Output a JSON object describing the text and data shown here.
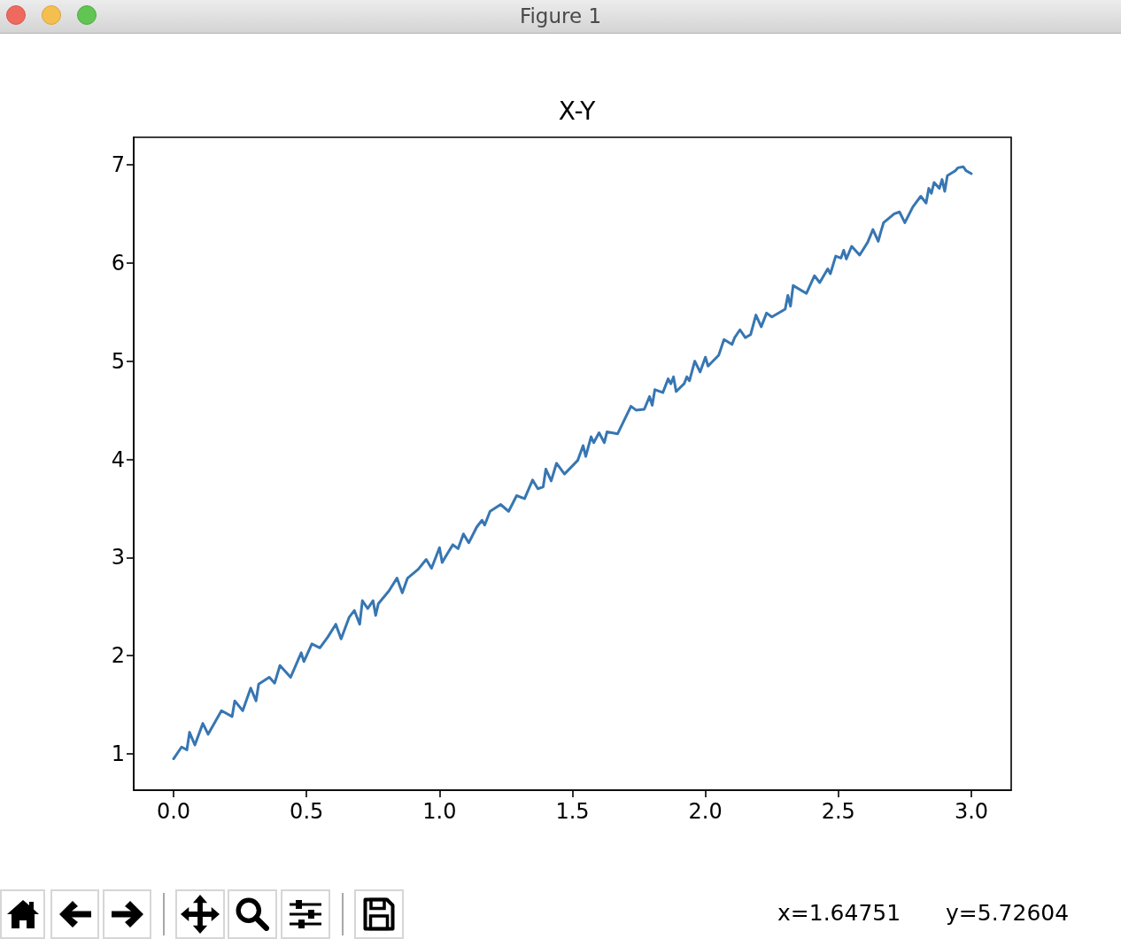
{
  "chart_data": {
    "type": "line",
    "title": "X-Y",
    "x": [
      0,
      0.03,
      0.05,
      0.06,
      0.08,
      0.11,
      0.13,
      0.18,
      0.22,
      0.23,
      0.26,
      0.29,
      0.31,
      0.32,
      0.36,
      0.38,
      0.4,
      0.44,
      0.48,
      0.49,
      0.52,
      0.55,
      0.58,
      0.61,
      0.63,
      0.66,
      0.68,
      0.7,
      0.71,
      0.73,
      0.75,
      0.76,
      0.77,
      0.81,
      0.84,
      0.86,
      0.88,
      0.92,
      0.95,
      0.97,
      1.0,
      1.01,
      1.05,
      1.07,
      1.09,
      1.11,
      1.14,
      1.16,
      1.17,
      1.19,
      1.23,
      1.26,
      1.29,
      1.32,
      1.35,
      1.37,
      1.39,
      1.4,
      1.42,
      1.44,
      1.47,
      1.52,
      1.54,
      1.55,
      1.57,
      1.58,
      1.6,
      1.62,
      1.63,
      1.67,
      1.72,
      1.74,
      1.77,
      1.79,
      1.8,
      1.81,
      1.84,
      1.86,
      1.87,
      1.88,
      1.89,
      1.92,
      1.93,
      1.94,
      1.96,
      1.98,
      2.0,
      2.01,
      2.05,
      2.07,
      2.1,
      2.11,
      2.13,
      2.15,
      2.17,
      2.19,
      2.21,
      2.23,
      2.25,
      2.3,
      2.31,
      2.32,
      2.33,
      2.38,
      2.41,
      2.43,
      2.46,
      2.47,
      2.49,
      2.51,
      2.52,
      2.53,
      2.55,
      2.58,
      2.61,
      2.63,
      2.65,
      2.66,
      2.67,
      2.71,
      2.73,
      2.75,
      2.78,
      2.81,
      2.83,
      2.84,
      2.85,
      2.86,
      2.88,
      2.89,
      2.9,
      2.91,
      2.94,
      2.95,
      2.97,
      2.98,
      3.0
    ],
    "values": [
      0.95,
      1.07,
      1.04,
      1.22,
      1.09,
      1.31,
      1.2,
      1.44,
      1.38,
      1.54,
      1.44,
      1.67,
      1.54,
      1.71,
      1.78,
      1.72,
      1.9,
      1.78,
      2.03,
      1.94,
      2.12,
      2.08,
      2.19,
      2.32,
      2.17,
      2.39,
      2.46,
      2.32,
      2.56,
      2.48,
      2.56,
      2.41,
      2.53,
      2.66,
      2.79,
      2.64,
      2.79,
      2.88,
      2.98,
      2.89,
      3.1,
      2.95,
      3.13,
      3.09,
      3.24,
      3.15,
      3.31,
      3.38,
      3.33,
      3.47,
      3.54,
      3.47,
      3.63,
      3.6,
      3.79,
      3.7,
      3.72,
      3.9,
      3.78,
      3.96,
      3.85,
      3.99,
      4.14,
      4.03,
      4.23,
      4.17,
      4.27,
      4.17,
      4.28,
      4.26,
      4.54,
      4.5,
      4.51,
      4.64,
      4.55,
      4.71,
      4.68,
      4.82,
      4.77,
      4.84,
      4.69,
      4.77,
      4.84,
      4.8,
      5.0,
      4.89,
      5.04,
      4.95,
      5.06,
      5.22,
      5.17,
      5.24,
      5.32,
      5.24,
      5.27,
      5.47,
      5.35,
      5.49,
      5.45,
      5.53,
      5.67,
      5.56,
      5.77,
      5.69,
      5.87,
      5.8,
      5.94,
      5.89,
      6.07,
      6.05,
      6.13,
      6.04,
      6.17,
      6.08,
      6.21,
      6.34,
      6.22,
      6.32,
      6.41,
      6.5,
      6.52,
      6.41,
      6.57,
      6.68,
      6.61,
      6.76,
      6.71,
      6.82,
      6.76,
      6.85,
      6.73,
      6.89,
      6.94,
      6.97,
      6.98,
      6.94,
      6.91
    ],
    "color": "#3776b2",
    "xlim": [
      -0.15,
      3.15
    ],
    "xticks": [
      {
        "value": 0,
        "label": "0.0"
      },
      0.5,
      {
        "value": 1,
        "label": "1.0"
      },
      1.5,
      {
        "value": 2,
        "label": "2.0"
      },
      2.5,
      {
        "value": 3,
        "label": "3.0"
      }
    ],
    "ylim": [
      0.63,
      7.28
    ],
    "yticks": [
      1,
      2,
      3,
      4,
      5,
      6,
      7
    ],
    "annotations": [
      "Figure 1",
      "x=1.64751",
      "y=5.72604"
    ]
  }
}
